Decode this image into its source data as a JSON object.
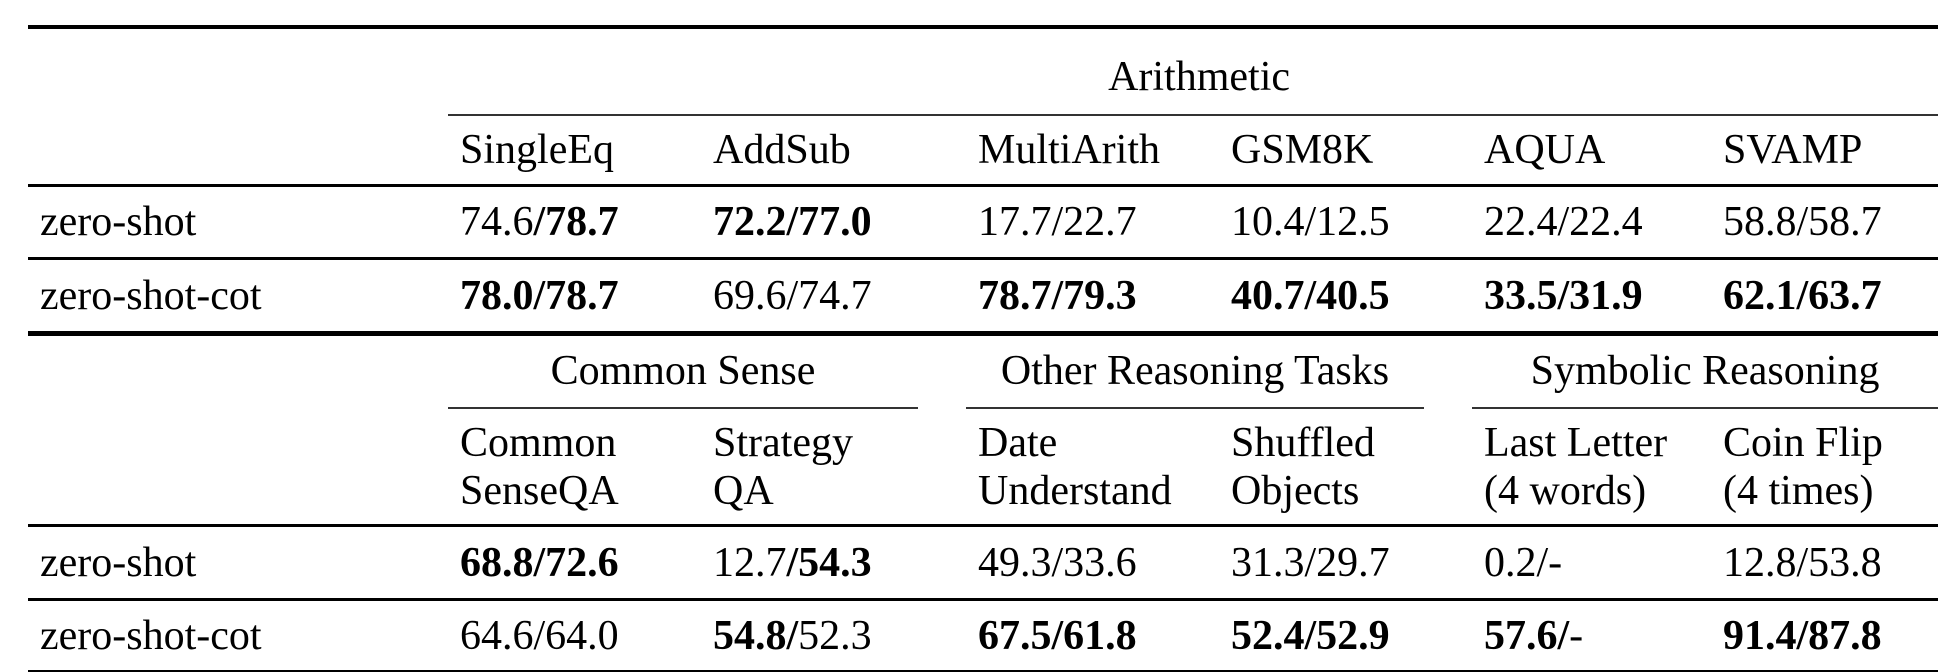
{
  "table": {
    "separator": "/",
    "dash": "-",
    "row_label_header": "",
    "sections": [
      {
        "groups": [
          {
            "label": "Arithmetic",
            "span": 6
          }
        ],
        "columns": [
          [
            "SingleEq"
          ],
          [
            "AddSub"
          ],
          [
            "MultiArith"
          ],
          [
            "GSM8K"
          ],
          [
            "AQUA"
          ],
          [
            "SVAMP"
          ]
        ],
        "rows": [
          {
            "label": "zero-shot",
            "cells": [
              {
                "a": "74.6",
                "b": "78.7",
                "a_bold": false,
                "b_bold": true
              },
              {
                "a": "72.2",
                "b": "77.0",
                "a_bold": true,
                "b_bold": true
              },
              {
                "a": "17.7",
                "b": "22.7",
                "a_bold": false,
                "b_bold": false
              },
              {
                "a": "10.4",
                "b": "12.5",
                "a_bold": false,
                "b_bold": false
              },
              {
                "a": "22.4",
                "b": "22.4",
                "a_bold": false,
                "b_bold": false
              },
              {
                "a": "58.8",
                "b": "58.7",
                "a_bold": false,
                "b_bold": false
              }
            ]
          },
          {
            "label": "zero-shot-cot",
            "cells": [
              {
                "a": "78.0",
                "b": "78.7",
                "a_bold": true,
                "b_bold": true
              },
              {
                "a": "69.6",
                "b": "74.7",
                "a_bold": false,
                "b_bold": false
              },
              {
                "a": "78.7",
                "b": "79.3",
                "a_bold": true,
                "b_bold": true
              },
              {
                "a": "40.7",
                "b": "40.5",
                "a_bold": true,
                "b_bold": true
              },
              {
                "a": "33.5",
                "b": "31.9",
                "a_bold": true,
                "b_bold": true
              },
              {
                "a": "62.1",
                "b": "63.7",
                "a_bold": true,
                "b_bold": true
              }
            ]
          }
        ]
      },
      {
        "groups": [
          {
            "label": "Common Sense",
            "span": 2
          },
          {
            "label": "Other Reasoning Tasks",
            "span": 2
          },
          {
            "label": "Symbolic Reasoning",
            "span": 2
          }
        ],
        "columns": [
          [
            "Common",
            "SenseQA"
          ],
          [
            "Strategy",
            "QA"
          ],
          [
            "Date",
            "Understand"
          ],
          [
            "Shuffled",
            "Objects"
          ],
          [
            "Last Letter",
            "(4 words)"
          ],
          [
            "Coin Flip",
            "(4 times)"
          ]
        ],
        "rows": [
          {
            "label": "zero-shot",
            "cells": [
              {
                "a": "68.8",
                "b": "72.6",
                "a_bold": true,
                "b_bold": true
              },
              {
                "a": "12.7",
                "b": "54.3",
                "a_bold": false,
                "b_bold": true
              },
              {
                "a": "49.3",
                "b": "33.6",
                "a_bold": false,
                "b_bold": false
              },
              {
                "a": "31.3",
                "b": "29.7",
                "a_bold": false,
                "b_bold": false
              },
              {
                "a": "0.2",
                "b": "-",
                "a_bold": false,
                "b_bold": false
              },
              {
                "a": "12.8",
                "b": "53.8",
                "a_bold": false,
                "b_bold": false
              }
            ]
          },
          {
            "label": "zero-shot-cot",
            "cells": [
              {
                "a": "64.6",
                "b": "64.0",
                "a_bold": false,
                "b_bold": false
              },
              {
                "a": "54.8",
                "b": "52.3",
                "a_bold": true,
                "b_bold": false
              },
              {
                "a": "67.5",
                "b": "61.8",
                "a_bold": true,
                "b_bold": true
              },
              {
                "a": "52.4",
                "b": "52.9",
                "a_bold": true,
                "b_bold": true
              },
              {
                "a": "57.6",
                "b": "-",
                "a_bold": true,
                "b_bold": false
              },
              {
                "a": "91.4",
                "b": "87.8",
                "a_bold": true,
                "b_bold": true
              }
            ]
          }
        ]
      }
    ]
  }
}
